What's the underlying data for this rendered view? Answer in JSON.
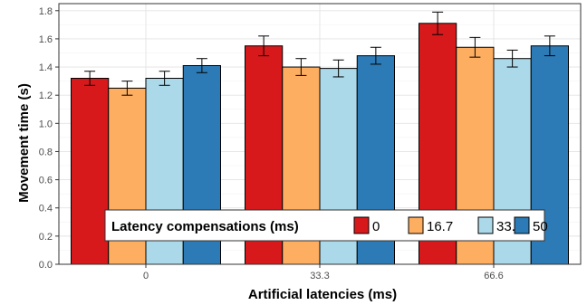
{
  "chart_data": {
    "type": "bar",
    "title": "",
    "xlabel": "Artificial latencies (ms)",
    "ylabel": "Movement time (s)",
    "categories": [
      "0",
      "33.3",
      "66.6"
    ],
    "ylim": [
      0,
      1.85
    ],
    "yticks": [
      "0.0",
      "0.2",
      "0.4",
      "0.6",
      "0.8",
      "1.0",
      "1.2",
      "1.4",
      "1.6",
      "1.8"
    ],
    "grid": true,
    "legend": {
      "title": "Latency compensations (ms)",
      "placement": "bottom-center"
    },
    "series": [
      {
        "name": "0",
        "color": "#d7191c",
        "values": [
          1.32,
          1.55,
          1.71
        ],
        "err": [
          0.05,
          0.07,
          0.08
        ]
      },
      {
        "name": "16.7",
        "color": "#fdae61",
        "values": [
          1.25,
          1.4,
          1.54
        ],
        "err": [
          0.05,
          0.06,
          0.07
        ]
      },
      {
        "name": "33.3",
        "color": "#abd9e9",
        "values": [
          1.32,
          1.39,
          1.46
        ],
        "err": [
          0.05,
          0.06,
          0.06
        ]
      },
      {
        "name": "50",
        "color": "#2c7bb6",
        "values": [
          1.41,
          1.48,
          1.55
        ],
        "err": [
          0.05,
          0.06,
          0.07
        ]
      }
    ]
  }
}
